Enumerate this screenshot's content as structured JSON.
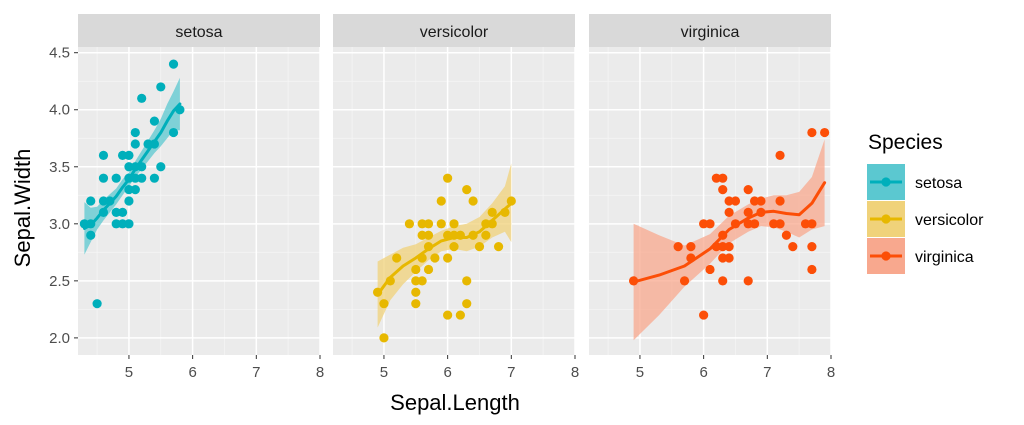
{
  "chart_data": {
    "type": "scatter",
    "facet_by": "Species",
    "xlabel": "Sepal.Length",
    "ylabel": "Sepal.Width",
    "xlim": [
      4.2,
      8.0
    ],
    "ylim": [
      1.85,
      4.55
    ],
    "x_ticks": [
      5,
      6,
      7,
      8
    ],
    "y_ticks": [
      2.0,
      2.5,
      3.0,
      3.5,
      4.0,
      4.5
    ],
    "x_tick_labels": [
      "5",
      "6",
      "7",
      "8"
    ],
    "y_tick_labels": [
      "2.0",
      "2.5",
      "3.0",
      "3.5",
      "4.0",
      "4.5"
    ],
    "grid": true,
    "smooth": "loess with confidence band",
    "legend": {
      "title": "Species",
      "placement": "right",
      "entries": [
        "setosa",
        "versicolor",
        "virginica"
      ]
    },
    "series": [
      {
        "name": "setosa",
        "color": "#00AFBB",
        "band_color": "#5BC8D0",
        "points": [
          [
            4.3,
            3.0
          ],
          [
            4.4,
            2.9
          ],
          [
            4.4,
            3.0
          ],
          [
            4.4,
            3.2
          ],
          [
            4.5,
            2.3
          ],
          [
            4.6,
            3.1
          ],
          [
            4.6,
            3.2
          ],
          [
            4.6,
            3.4
          ],
          [
            4.6,
            3.6
          ],
          [
            4.7,
            3.2
          ],
          [
            4.8,
            3.0
          ],
          [
            4.8,
            3.1
          ],
          [
            4.8,
            3.4
          ],
          [
            4.9,
            3.0
          ],
          [
            4.9,
            3.1
          ],
          [
            4.9,
            3.6
          ],
          [
            5.0,
            3.0
          ],
          [
            5.0,
            3.2
          ],
          [
            5.0,
            3.3
          ],
          [
            5.0,
            3.4
          ],
          [
            5.0,
            3.5
          ],
          [
            5.0,
            3.6
          ],
          [
            5.1,
            3.3
          ],
          [
            5.1,
            3.4
          ],
          [
            5.1,
            3.5
          ],
          [
            5.1,
            3.7
          ],
          [
            5.1,
            3.8
          ],
          [
            5.2,
            3.4
          ],
          [
            5.2,
            3.5
          ],
          [
            5.2,
            4.1
          ],
          [
            5.3,
            3.7
          ],
          [
            5.4,
            3.4
          ],
          [
            5.4,
            3.7
          ],
          [
            5.4,
            3.9
          ],
          [
            5.5,
            3.5
          ],
          [
            5.5,
            4.2
          ],
          [
            5.7,
            3.8
          ],
          [
            5.7,
            4.4
          ],
          [
            5.8,
            4.0
          ]
        ],
        "smooth": [
          [
            4.3,
            2.96
          ],
          [
            4.4,
            2.99
          ],
          [
            4.5,
            3.05
          ],
          [
            4.6,
            3.12
          ],
          [
            4.7,
            3.18
          ],
          [
            4.8,
            3.24
          ],
          [
            4.9,
            3.32
          ],
          [
            5.0,
            3.39
          ],
          [
            5.1,
            3.48
          ],
          [
            5.2,
            3.56
          ],
          [
            5.3,
            3.64
          ],
          [
            5.4,
            3.72
          ],
          [
            5.5,
            3.8
          ],
          [
            5.6,
            3.9
          ],
          [
            5.7,
            3.99
          ],
          [
            5.8,
            4.05
          ]
        ],
        "band_lower": [
          2.73,
          2.84,
          2.95,
          3.03,
          3.1,
          3.17,
          3.25,
          3.33,
          3.41,
          3.48,
          3.55,
          3.62,
          3.68,
          3.75,
          3.82,
          3.82
        ],
        "band_upper": [
          3.19,
          3.14,
          3.15,
          3.21,
          3.26,
          3.31,
          3.39,
          3.45,
          3.55,
          3.64,
          3.73,
          3.82,
          3.92,
          4.05,
          4.16,
          4.28
        ]
      },
      {
        "name": "versicolor",
        "color": "#E7B800",
        "band_color": "#F0D27A",
        "points": [
          [
            4.9,
            2.4
          ],
          [
            5.0,
            2.0
          ],
          [
            5.0,
            2.3
          ],
          [
            5.1,
            2.5
          ],
          [
            5.2,
            2.7
          ],
          [
            5.4,
            3.0
          ],
          [
            5.5,
            2.3
          ],
          [
            5.5,
            2.4
          ],
          [
            5.5,
            2.5
          ],
          [
            5.5,
            2.6
          ],
          [
            5.6,
            2.5
          ],
          [
            5.6,
            2.7
          ],
          [
            5.6,
            2.9
          ],
          [
            5.6,
            3.0
          ],
          [
            5.7,
            2.6
          ],
          [
            5.7,
            2.8
          ],
          [
            5.7,
            2.9
          ],
          [
            5.7,
            3.0
          ],
          [
            5.8,
            2.7
          ],
          [
            5.9,
            3.0
          ],
          [
            5.9,
            3.2
          ],
          [
            6.0,
            2.2
          ],
          [
            6.0,
            2.7
          ],
          [
            6.0,
            2.9
          ],
          [
            6.0,
            3.4
          ],
          [
            6.1,
            2.8
          ],
          [
            6.1,
            2.9
          ],
          [
            6.1,
            3.0
          ],
          [
            6.2,
            2.2
          ],
          [
            6.2,
            2.9
          ],
          [
            6.3,
            2.3
          ],
          [
            6.3,
            2.5
          ],
          [
            6.3,
            3.3
          ],
          [
            6.4,
            2.9
          ],
          [
            6.4,
            3.2
          ],
          [
            6.5,
            2.8
          ],
          [
            6.6,
            2.9
          ],
          [
            6.6,
            3.0
          ],
          [
            6.7,
            3.0
          ],
          [
            6.7,
            3.1
          ],
          [
            6.8,
            2.8
          ],
          [
            6.9,
            3.1
          ],
          [
            7.0,
            3.2
          ]
        ],
        "smooth": [
          [
            4.9,
            2.38
          ],
          [
            5.1,
            2.53
          ],
          [
            5.3,
            2.63
          ],
          [
            5.5,
            2.7
          ],
          [
            5.7,
            2.78
          ],
          [
            5.9,
            2.85
          ],
          [
            6.1,
            2.88
          ],
          [
            6.3,
            2.88
          ],
          [
            6.5,
            2.93
          ],
          [
            6.7,
            3.03
          ],
          [
            6.9,
            3.13
          ],
          [
            7.0,
            3.18
          ]
        ],
        "band_lower": [
          2.09,
          2.33,
          2.47,
          2.58,
          2.68,
          2.76,
          2.78,
          2.76,
          2.8,
          2.88,
          2.93,
          2.84
        ],
        "band_upper": [
          2.67,
          2.73,
          2.79,
          2.82,
          2.88,
          2.94,
          2.98,
          3.0,
          3.06,
          3.18,
          3.33,
          3.53
        ]
      },
      {
        "name": "virginica",
        "color": "#FC4E07",
        "band_color": "#F8A88E",
        "points": [
          [
            4.9,
            2.5
          ],
          [
            5.6,
            2.8
          ],
          [
            5.7,
            2.5
          ],
          [
            5.8,
            2.7
          ],
          [
            5.8,
            2.8
          ],
          [
            6.0,
            2.2
          ],
          [
            6.0,
            3.0
          ],
          [
            6.1,
            2.6
          ],
          [
            6.1,
            3.0
          ],
          [
            6.2,
            2.8
          ],
          [
            6.2,
            3.4
          ],
          [
            6.3,
            2.5
          ],
          [
            6.3,
            2.7
          ],
          [
            6.3,
            2.8
          ],
          [
            6.3,
            2.9
          ],
          [
            6.3,
            3.3
          ],
          [
            6.3,
            3.4
          ],
          [
            6.4,
            2.7
          ],
          [
            6.4,
            2.8
          ],
          [
            6.4,
            3.1
          ],
          [
            6.4,
            3.2
          ],
          [
            6.5,
            3.0
          ],
          [
            6.5,
            3.2
          ],
          [
            6.7,
            2.5
          ],
          [
            6.7,
            3.0
          ],
          [
            6.7,
            3.1
          ],
          [
            6.7,
            3.3
          ],
          [
            6.8,
            3.0
          ],
          [
            6.8,
            3.2
          ],
          [
            6.9,
            3.1
          ],
          [
            6.9,
            3.2
          ],
          [
            7.1,
            3.0
          ],
          [
            7.2,
            3.0
          ],
          [
            7.2,
            3.2
          ],
          [
            7.2,
            3.6
          ],
          [
            7.3,
            2.9
          ],
          [
            7.4,
            2.8
          ],
          [
            7.6,
            3.0
          ],
          [
            7.7,
            2.6
          ],
          [
            7.7,
            2.8
          ],
          [
            7.7,
            3.0
          ],
          [
            7.7,
            3.8
          ],
          [
            7.9,
            3.8
          ]
        ],
        "smooth": [
          [
            4.9,
            2.49
          ],
          [
            5.3,
            2.55
          ],
          [
            5.7,
            2.63
          ],
          [
            6.1,
            2.78
          ],
          [
            6.4,
            2.95
          ],
          [
            6.7,
            3.05
          ],
          [
            6.9,
            3.1
          ],
          [
            7.1,
            3.11
          ],
          [
            7.3,
            3.09
          ],
          [
            7.5,
            3.08
          ],
          [
            7.7,
            3.18
          ],
          [
            7.9,
            3.36
          ]
        ],
        "band_lower": [
          1.98,
          2.2,
          2.45,
          2.65,
          2.83,
          2.93,
          2.98,
          2.97,
          2.93,
          2.88,
          2.95,
          2.98
        ],
        "band_upper": [
          3.0,
          2.9,
          2.81,
          2.91,
          3.07,
          3.17,
          3.22,
          3.25,
          3.25,
          3.28,
          3.41,
          3.74
        ]
      }
    ]
  }
}
